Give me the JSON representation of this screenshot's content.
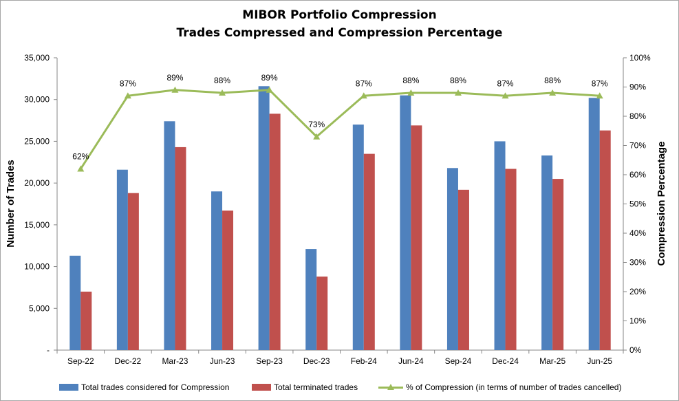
{
  "chart_data": {
    "type": "bar",
    "title": "MIBOR Portfolio Compression",
    "subtitle": "Trades Compressed and Compression Percentage",
    "xlabel": "",
    "ylabel": "Number of Trades",
    "y2label": "Compression Percentage",
    "categories": [
      "Sep-22",
      "Dec-22",
      "Mar-23",
      "Jun-23",
      "Sep-23",
      "Dec-23",
      "Feb-24",
      "Jun-24",
      "Sep-24",
      "Dec-24",
      "Mar-25",
      "Jun-25"
    ],
    "ylim": [
      0,
      35000
    ],
    "y2lim": [
      0,
      100
    ],
    "yticks": [
      "-",
      "5,000",
      "10,000",
      "15,000",
      "20,000",
      "25,000",
      "30,000",
      "35,000"
    ],
    "y2ticks": [
      "0%",
      "10%",
      "20%",
      "30%",
      "40%",
      "50%",
      "60%",
      "70%",
      "80%",
      "90%",
      "100%"
    ],
    "series": [
      {
        "name": "Total trades considered for Compression",
        "type": "bar",
        "axis": "left",
        "color": "#4f81bd",
        "values": [
          11300,
          21600,
          27400,
          19000,
          31600,
          12100,
          27000,
          30500,
          21800,
          25000,
          23300,
          30200
        ]
      },
      {
        "name": "Total terminated trades",
        "type": "bar",
        "axis": "left",
        "color": "#c0504d",
        "values": [
          7000,
          18800,
          24300,
          16700,
          28300,
          8800,
          23500,
          26900,
          19200,
          21700,
          20500,
          26300
        ]
      },
      {
        "name": "% of Compression (in terms of number of trades cancelled)",
        "type": "line",
        "axis": "right",
        "color": "#9bbb59",
        "values": [
          62,
          87,
          89,
          88,
          89,
          73,
          87,
          88,
          88,
          87,
          88,
          87
        ],
        "labels": [
          "62%",
          "87%",
          "89%",
          "88%",
          "89%",
          "73%",
          "87%",
          "88%",
          "88%",
          "87%",
          "88%",
          "87%"
        ]
      }
    ],
    "grid": false,
    "legend": "bottom"
  }
}
